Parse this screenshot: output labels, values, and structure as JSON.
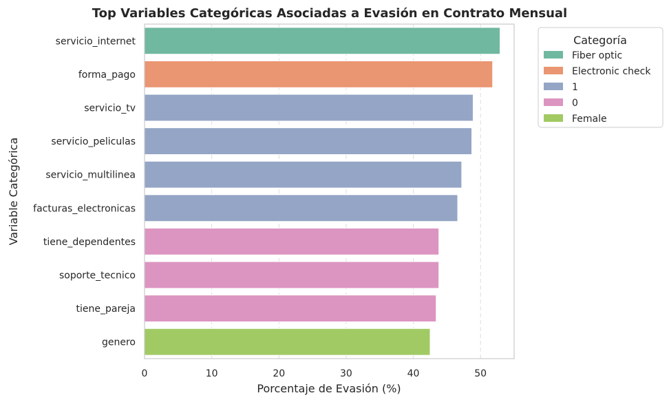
{
  "chart_data": {
    "type": "bar",
    "orientation": "horizontal",
    "title": "Top Variables Categóricas Asociadas a Evasión en Contrato Mensual",
    "xlabel": "Porcentaje de Evasión (%)",
    "ylabel": "Variable Categórica",
    "xlim": [
      0,
      55
    ],
    "xticks": [
      0,
      10,
      20,
      30,
      40,
      50
    ],
    "grid": true,
    "categories": [
      "servicio_internet",
      "forma_pago",
      "servicio_tv",
      "servicio_peliculas",
      "servicio_multilinea",
      "facturas_electronicas",
      "tiene_dependentes",
      "soporte_tecnico",
      "tiene_pareja",
      "genero"
    ],
    "values": [
      52.9,
      51.8,
      48.9,
      48.7,
      47.2,
      46.6,
      43.8,
      43.8,
      43.4,
      42.5
    ],
    "bar_category": [
      "Fiber optic",
      "Electronic check",
      "1",
      "1",
      "1",
      "1",
      "0",
      "0",
      "0",
      "Female"
    ],
    "legend": {
      "title": "Categoría",
      "position": "outside-top-right",
      "entries": [
        {
          "label": "Fiber optic",
          "color": "#70b8a0"
        },
        {
          "label": "Electronic check",
          "color": "#ea9672"
        },
        {
          "label": "1",
          "color": "#94a5c5"
        },
        {
          "label": "0",
          "color": "#dc95c1"
        },
        {
          "label": "Female",
          "color": "#a1ca64"
        }
      ]
    }
  }
}
